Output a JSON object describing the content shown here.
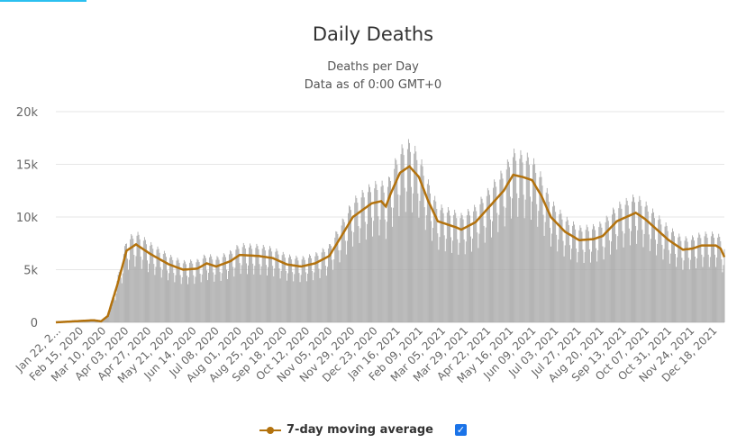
{
  "chart_data": {
    "type": "bar",
    "title": "Daily Deaths",
    "subtitle": "Deaths per Day",
    "subtitle2": "Data as of 0:00 GMT+0",
    "ylim": [
      0,
      20000
    ],
    "y_ticks": [
      "0",
      "5k",
      "10k",
      "15k",
      "20k"
    ],
    "y_tick_values": [
      0,
      5000,
      10000,
      15000,
      20000
    ],
    "x_start": "2020-01-22",
    "days": 710,
    "x_tick_labels": [
      "Jan 22, 2...",
      "Feb 15, 2020",
      "Mar 10, 2020",
      "Apr 03, 2020",
      "Apr 27, 2020",
      "May 21, 2020",
      "Jun 14, 2020",
      "Jul 08, 2020",
      "Aug 01, 2020",
      "Aug 25, 2020",
      "Sep 18, 2020",
      "Oct 12, 2020",
      "Nov 05, 2020",
      "Nov 29, 2020",
      "Dec 23, 2020",
      "Jan 16, 2021",
      "Feb 09, 2021",
      "Mar 05, 2021",
      "Mar 29, 2021",
      "Apr 22, 2021",
      "May 16, 2021",
      "Jun 09, 2021",
      "Jul 03, 2021",
      "Jul 27, 2021",
      "Aug 20, 2021",
      "Sep 13, 2021",
      "Oct 07, 2021",
      "Oct 31, 2021",
      "Nov 24, 2021",
      "Dec 18, 2021"
    ],
    "x_tick_interval_days": 24,
    "moving_average_keypoints": [
      [
        0,
        0
      ],
      [
        40,
        200
      ],
      [
        48,
        100
      ],
      [
        55,
        600
      ],
      [
        65,
        3500
      ],
      [
        75,
        6800
      ],
      [
        85,
        7400
      ],
      [
        100,
        6500
      ],
      [
        120,
        5500
      ],
      [
        135,
        5000
      ],
      [
        150,
        5100
      ],
      [
        160,
        5600
      ],
      [
        170,
        5300
      ],
      [
        185,
        5800
      ],
      [
        195,
        6400
      ],
      [
        215,
        6300
      ],
      [
        230,
        6100
      ],
      [
        245,
        5500
      ],
      [
        260,
        5300
      ],
      [
        275,
        5600
      ],
      [
        290,
        6300
      ],
      [
        305,
        8500
      ],
      [
        315,
        10000
      ],
      [
        335,
        11300
      ],
      [
        345,
        11500
      ],
      [
        350,
        11000
      ],
      [
        355,
        12200
      ],
      [
        365,
        14200
      ],
      [
        375,
        14800
      ],
      [
        385,
        13800
      ],
      [
        395,
        11500
      ],
      [
        405,
        9600
      ],
      [
        425,
        9000
      ],
      [
        430,
        8800
      ],
      [
        445,
        9500
      ],
      [
        455,
        10500
      ],
      [
        465,
        11500
      ],
      [
        475,
        12500
      ],
      [
        485,
        14000
      ],
      [
        495,
        13800
      ],
      [
        505,
        13500
      ],
      [
        515,
        12000
      ],
      [
        525,
        10000
      ],
      [
        540,
        8600
      ],
      [
        555,
        7800
      ],
      [
        570,
        7900
      ],
      [
        580,
        8200
      ],
      [
        595,
        9600
      ],
      [
        605,
        10000
      ],
      [
        615,
        10400
      ],
      [
        625,
        9800
      ],
      [
        635,
        9000
      ],
      [
        650,
        7800
      ],
      [
        665,
        6900
      ],
      [
        675,
        7000
      ],
      [
        685,
        7300
      ],
      [
        700,
        7300
      ],
      [
        705,
        7000
      ],
      [
        709,
        6200
      ]
    ],
    "daily_weekday_factors": [
      0.72,
      0.85,
      1.12,
      1.18,
      1.15,
      1.1,
      0.88
    ],
    "bar_color": "#a6a6a6",
    "series": [
      {
        "name": "7-day moving average",
        "color": "#b3720d"
      }
    ],
    "legend_position": "bottom"
  }
}
